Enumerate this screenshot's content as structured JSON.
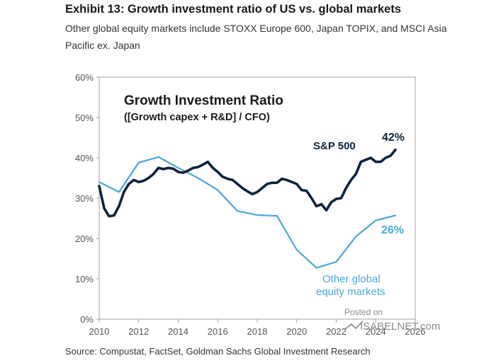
{
  "header": {
    "title": "Exhibit 13: Growth investment ratio of US vs. global markets",
    "subtitle": "Other global equity markets include STOXX Europe 600, Japan TOPIX, and MSCI Asia Pacific ex. Japan"
  },
  "footer": {
    "source": "Source: Compustat, FactSet, Goldman Sachs Global Investment Research"
  },
  "watermark": {
    "line1": "Posted on",
    "line2": "ISABELNET.com"
  },
  "colors": {
    "sp500": "#0d2340",
    "other": "#4aa8dc",
    "axis": "#9a9a9a"
  },
  "chart_data": {
    "type": "line",
    "title": "Growth Investment Ratio",
    "subtitle": "([Growth capex + R&D] / CFO)",
    "xlabel": "",
    "ylabel": "",
    "xlim": [
      2010,
      2026
    ],
    "ylim": [
      0,
      60
    ],
    "x_ticks": [
      "2010",
      "2012",
      "2014",
      "2016",
      "2018",
      "2020",
      "2022",
      "2024",
      "2026"
    ],
    "y_ticks": [
      "0%",
      "10%",
      "20%",
      "30%",
      "40%",
      "50%",
      "60%"
    ],
    "grid": false,
    "series": [
      {
        "name": "S&P 500",
        "end_label": "42%",
        "points": [
          [
            2010.0,
            33.0
          ],
          [
            2010.25,
            27.5
          ],
          [
            2010.5,
            25.5
          ],
          [
            2010.75,
            25.7
          ],
          [
            2011.0,
            28.0
          ],
          [
            2011.25,
            31.5
          ],
          [
            2011.5,
            33.5
          ],
          [
            2011.75,
            34.5
          ],
          [
            2012.0,
            34.0
          ],
          [
            2012.25,
            34.3
          ],
          [
            2012.5,
            35.0
          ],
          [
            2012.75,
            36.0
          ],
          [
            2013.0,
            37.5
          ],
          [
            2013.25,
            37.2
          ],
          [
            2013.5,
            37.5
          ],
          [
            2013.75,
            37.3
          ],
          [
            2014.0,
            36.5
          ],
          [
            2014.25,
            36.3
          ],
          [
            2014.5,
            36.8
          ],
          [
            2014.75,
            37.5
          ],
          [
            2015.0,
            37.7
          ],
          [
            2015.25,
            38.3
          ],
          [
            2015.5,
            39.0
          ],
          [
            2015.75,
            37.5
          ],
          [
            2016.0,
            36.5
          ],
          [
            2016.25,
            35.3
          ],
          [
            2016.5,
            34.8
          ],
          [
            2016.75,
            34.5
          ],
          [
            2017.0,
            33.5
          ],
          [
            2017.25,
            32.5
          ],
          [
            2017.5,
            31.7
          ],
          [
            2017.75,
            31.0
          ],
          [
            2018.0,
            31.5
          ],
          [
            2018.25,
            32.5
          ],
          [
            2018.5,
            33.5
          ],
          [
            2018.75,
            33.8
          ],
          [
            2019.0,
            33.8
          ],
          [
            2019.25,
            34.8
          ],
          [
            2019.5,
            34.5
          ],
          [
            2019.75,
            34.0
          ],
          [
            2020.0,
            33.5
          ],
          [
            2020.25,
            32.0
          ],
          [
            2020.5,
            31.8
          ],
          [
            2020.75,
            30.0
          ],
          [
            2021.0,
            28.0
          ],
          [
            2021.25,
            28.5
          ],
          [
            2021.5,
            27.0
          ],
          [
            2021.75,
            29.0
          ],
          [
            2022.0,
            29.8
          ],
          [
            2022.25,
            30.0
          ],
          [
            2022.5,
            32.5
          ],
          [
            2022.75,
            34.5
          ],
          [
            2023.0,
            36.0
          ],
          [
            2023.25,
            39.0
          ],
          [
            2023.5,
            39.5
          ],
          [
            2023.75,
            40.0
          ],
          [
            2024.0,
            39.0
          ],
          [
            2024.25,
            39.0
          ],
          [
            2024.5,
            40.0
          ],
          [
            2024.75,
            40.5
          ],
          [
            2025.0,
            42.0
          ]
        ]
      },
      {
        "name": "Other global equity markets",
        "end_label": "26%",
        "points": [
          [
            2010.0,
            34.0
          ],
          [
            2011.0,
            31.5
          ],
          [
            2012.0,
            38.8
          ],
          [
            2013.0,
            40.2
          ],
          [
            2014.0,
            37.5
          ],
          [
            2015.0,
            35.0
          ],
          [
            2016.0,
            32.0
          ],
          [
            2017.0,
            26.8
          ],
          [
            2018.0,
            25.8
          ],
          [
            2019.0,
            25.6
          ],
          [
            2020.0,
            17.2
          ],
          [
            2021.0,
            12.7
          ],
          [
            2022.0,
            14.2
          ],
          [
            2023.0,
            20.5
          ],
          [
            2024.0,
            24.5
          ],
          [
            2025.0,
            25.7
          ]
        ]
      }
    ]
  }
}
